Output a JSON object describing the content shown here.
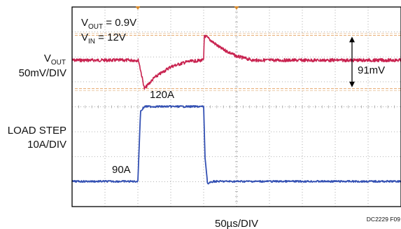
{
  "chart_data": {
    "type": "line",
    "title": "",
    "xlabel": "50µs/DIV",
    "figure_id": "DC2229 F09",
    "x_divisions": 10,
    "y_divisions": 8,
    "time_per_div_us": 50,
    "grid": "dotted",
    "channels": [
      {
        "name": "VOUT",
        "label_main": "V",
        "label_sub": "OUT",
        "scale_label": "50mV/DIV",
        "scale_per_div_mV": 50,
        "color": "#c8224f",
        "x_us": [
          0,
          100,
          101,
          110,
          125,
          150,
          175,
          199,
          200,
          201,
          225,
          250,
          275,
          300,
          350,
          400,
          450,
          500
        ],
        "y_mV": [
          0,
          0,
          0,
          -57,
          -35,
          -13,
          -3,
          0,
          0,
          50,
          25,
          8,
          0,
          0,
          0,
          0,
          0,
          0
        ]
      },
      {
        "name": "LOAD STEP",
        "scale_label": "10A/DIV",
        "scale_per_div_A": 10,
        "color": "#3350b3",
        "x_us": [
          0,
          100,
          104,
          110,
          200,
          202,
          206,
          215,
          500
        ],
        "y_A": [
          90,
          90,
          118,
          120,
          120,
          100,
          89,
          90,
          90
        ]
      }
    ],
    "annotations": {
      "vout_value": {
        "main": "V",
        "sub": "OUT",
        "rest": " = 0.9V"
      },
      "vin_value": {
        "main": "V",
        "sub": "IN",
        "rest": " = 12V"
      },
      "delta_v": "91mV",
      "load_high": "120A",
      "load_low": "90A"
    }
  }
}
